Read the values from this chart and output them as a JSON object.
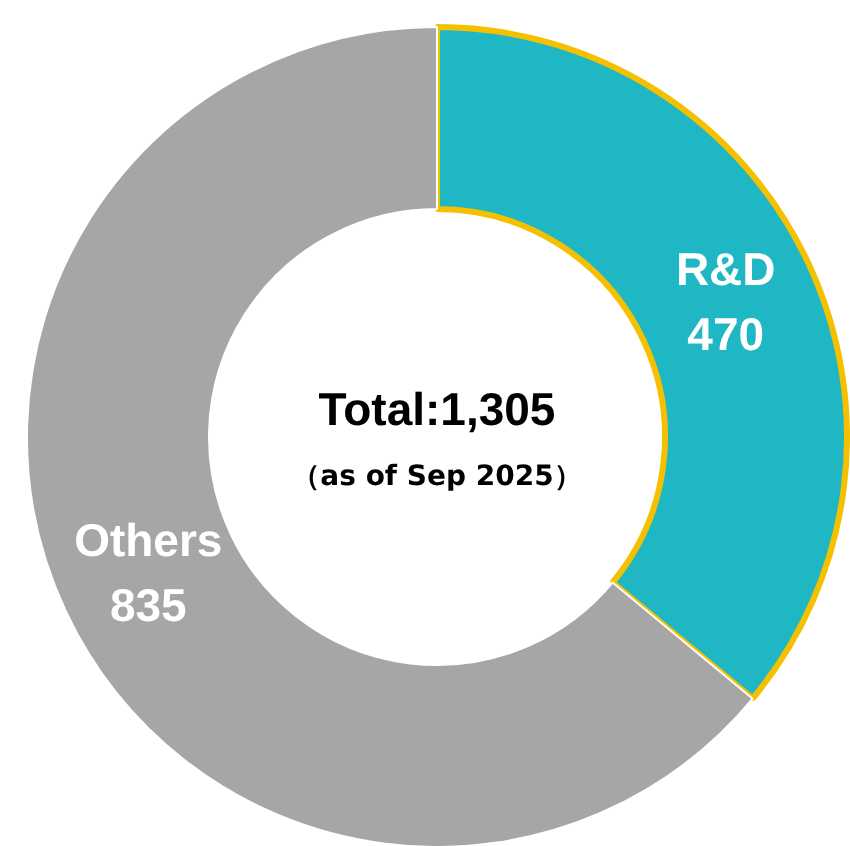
{
  "chart_data": {
    "type": "donut",
    "title": "Total:1,305",
    "subtitle": "（as of Sep 2025）",
    "categories": [
      "R&D",
      "Others"
    ],
    "values": [
      470,
      835
    ],
    "colors": [
      "#20b7c5",
      "#a6a6a6"
    ],
    "data_labels": true
  }
}
